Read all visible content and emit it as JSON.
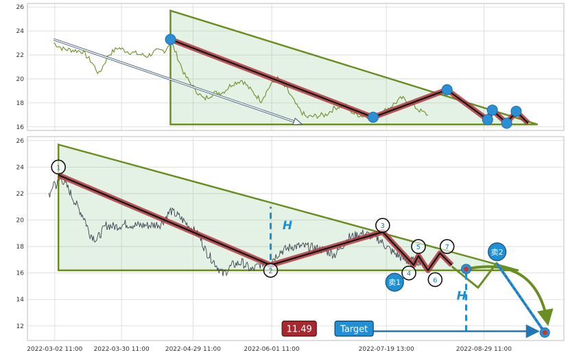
{
  "chart_data": [
    {
      "type": "line",
      "panel": "top",
      "ylim": [
        15.7,
        26.3
      ],
      "yticks": [
        "16",
        "18",
        "20",
        "22",
        "24",
        "26"
      ],
      "grid": true,
      "price_series": {
        "color": "#6b8e23",
        "x": [
          "2022-03-02",
          "2022-03-06",
          "2022-03-10",
          "2022-03-14",
          "2022-03-18",
          "2022-03-21",
          "2022-03-25",
          "2022-03-29",
          "2022-04-02",
          "2022-04-06",
          "2022-04-10",
          "2022-04-14",
          "2022-04-18",
          "2022-04-20",
          "2022-04-23",
          "2022-04-26",
          "2022-04-30",
          "2022-05-04",
          "2022-05-08",
          "2022-05-12",
          "2022-05-16",
          "2022-05-20",
          "2022-05-24",
          "2022-05-28",
          "2022-06-01",
          "2022-06-04",
          "2022-06-08",
          "2022-06-12",
          "2022-06-16",
          "2022-06-20",
          "2022-06-24",
          "2022-06-28",
          "2022-07-02",
          "2022-07-06",
          "2022-07-10",
          "2022-07-14",
          "2022-07-18",
          "2022-07-22",
          "2022-07-26",
          "2022-07-30",
          "2022-08-03",
          "2022-08-06"
        ],
        "y": [
          23.0,
          22.5,
          22.4,
          22.3,
          21.4,
          20.4,
          22.0,
          22.6,
          22.3,
          22.1,
          21.9,
          22.3,
          22.4,
          23.2,
          21.8,
          20.3,
          19.2,
          18.3,
          18.8,
          18.9,
          19.6,
          19.9,
          19.0,
          18.2,
          19.5,
          20.0,
          19.1,
          17.7,
          16.8,
          16.9,
          17.0,
          17.6,
          17.8,
          17.1,
          16.9,
          16.9,
          17.2,
          17.8,
          18.4,
          17.9,
          17.3,
          17.0
        ]
      },
      "triangle": [
        [
          "2022-04-20",
          25.7
        ],
        [
          "2022-04-20",
          16.2
        ],
        [
          "2022-09-21",
          16.2
        ]
      ],
      "zigzag": [
        [
          "2022-04-20",
          23.3
        ],
        [
          "2022-07-14",
          16.8
        ],
        [
          "2022-08-14",
          19.1
        ],
        [
          "2022-08-31",
          16.6
        ],
        [
          "2022-09-02",
          17.4
        ],
        [
          "2022-09-08",
          16.3
        ],
        [
          "2022-09-12",
          17.3
        ],
        [
          "2022-09-17",
          16.3
        ]
      ],
      "pivots": [
        [
          "2022-04-20",
          23.3
        ],
        [
          "2022-07-14",
          16.8
        ],
        [
          "2022-08-14",
          19.1
        ],
        [
          "2022-08-31",
          16.6
        ],
        [
          "2022-09-02",
          17.4
        ],
        [
          "2022-09-08",
          16.3
        ],
        [
          "2022-09-12",
          17.3
        ]
      ],
      "trend_arrow": [
        [
          "2022-03-02",
          23.3
        ],
        [
          "2022-06-13",
          16.3
        ]
      ]
    },
    {
      "type": "line",
      "panel": "bottom",
      "ylim": [
        10.9,
        26.3
      ],
      "yticks": [
        "12",
        "14",
        "16",
        "18",
        "20",
        "22",
        "24",
        "26"
      ],
      "xticks": [
        "2022-03-02 11:00",
        "2022-03-30 11:00",
        "2022-04-29 11:00",
        "2022-06-01 11:00",
        "2022-07-19 13:00",
        "2022-08-29 11:00"
      ],
      "grid": true,
      "price_series": {
        "color": "#3a4350",
        "x": [
          "2022-02-28",
          "2022-03-01",
          "2022-03-02",
          "2022-03-03",
          "2022-03-05",
          "2022-03-08",
          "2022-03-12",
          "2022-03-15",
          "2022-03-17",
          "2022-03-20",
          "2022-03-24",
          "2022-03-28",
          "2022-04-01",
          "2022-04-06",
          "2022-04-11",
          "2022-04-16",
          "2022-04-20",
          "2022-04-24",
          "2022-04-28",
          "2022-05-02",
          "2022-05-05",
          "2022-05-08",
          "2022-05-10",
          "2022-05-12",
          "2022-05-16",
          "2022-05-20",
          "2022-05-24",
          "2022-05-28",
          "2022-06-01",
          "2022-06-05",
          "2022-06-10",
          "2022-06-16",
          "2022-06-22",
          "2022-06-28",
          "2022-07-04",
          "2022-07-10",
          "2022-07-16",
          "2022-07-22",
          "2022-07-28",
          "2022-08-03"
        ],
        "y": [
          22.0,
          21.9,
          23.0,
          22.6,
          23.2,
          22.4,
          21.0,
          20.1,
          19.0,
          18.5,
          19.6,
          19.5,
          19.7,
          19.6,
          19.6,
          19.7,
          20.7,
          20.2,
          19.5,
          18.8,
          17.6,
          16.9,
          16.4,
          15.9,
          16.6,
          16.8,
          16.2,
          16.7,
          16.9,
          17.6,
          18.0,
          18.0,
          17.8,
          17.4,
          18.7,
          19.0,
          18.6,
          17.6,
          16.9,
          16.9
        ]
      },
      "triangle": [
        [
          "2022-03-04",
          25.7
        ],
        [
          "2022-03-04",
          16.2
        ],
        [
          "2022-09-13",
          16.2
        ]
      ],
      "zigzag": [
        [
          "2022-03-04",
          23.4
        ],
        [
          "2022-06-01",
          16.6
        ],
        [
          "2022-07-18",
          19.1
        ],
        [
          "2022-07-31",
          16.6
        ],
        [
          "2022-08-02",
          17.3
        ],
        [
          "2022-08-06",
          16.2
        ],
        [
          "2022-08-11",
          17.5
        ],
        [
          "2022-08-16",
          16.6
        ]
      ],
      "pivots": [
        {
          "label": "1",
          "x": "2022-03-04",
          "y": 24.0,
          "pos": "on"
        },
        {
          "label": "2",
          "x": "2022-06-01",
          "y": 16.2,
          "pos": "below"
        },
        {
          "label": "3",
          "x": "2022-07-18",
          "y": 19.6,
          "pos": "above"
        },
        {
          "label": "4",
          "x": "2022-07-29",
          "y": 16.0,
          "pos": "below"
        },
        {
          "label": "5",
          "x": "2022-08-02",
          "y": 18.0,
          "pos": "above"
        },
        {
          "label": "6",
          "x": "2022-08-09",
          "y": 15.5,
          "pos": "below"
        },
        {
          "label": "7",
          "x": "2022-08-14",
          "y": 18.0,
          "pos": "above"
        }
      ],
      "measure_h": [
        {
          "label": "H",
          "x": "2022-06-01",
          "y_from": 16.2,
          "y_to": 21.0,
          "label_at": [
            "2022-06-06",
            19.6
          ]
        },
        {
          "label": "H",
          "x": "2022-08-22",
          "y_from": 11.6,
          "y_to": 16.2,
          "label_at": [
            "2022-08-18",
            14.3
          ]
        }
      ],
      "projection": [
        [
          "2022-08-16",
          16.5
        ],
        [
          "2022-08-27",
          14.9
        ],
        [
          "2022-09-04",
          16.8
        ]
      ],
      "sell_path": [
        [
          "2022-09-04",
          16.7
        ],
        [
          "2022-09-24",
          11.5
        ]
      ],
      "curved_arrow": [
        [
          "2022-08-22",
          16.3
        ],
        [
          "2022-09-25",
          12.4
        ]
      ],
      "target_arrow": [
        [
          "2022-07-10",
          11.6
        ],
        [
          "2022-09-24",
          11.6
        ]
      ],
      "target_point": [
        "2022-09-24",
        11.5
      ],
      "markers": [
        {
          "label": "卖1",
          "x": "2022-07-23",
          "y": 15.3
        },
        {
          "label": "卖2",
          "x": "2022-09-04",
          "y": 17.6
        }
      ],
      "buy_point": [
        "2022-08-22",
        16.3
      ],
      "price_tag": {
        "text": "11.49",
        "x": "2022-06-13",
        "y": 11.8
      },
      "target_tag": {
        "text": "Target",
        "x": "2022-07-06",
        "y": 11.8
      }
    }
  ]
}
